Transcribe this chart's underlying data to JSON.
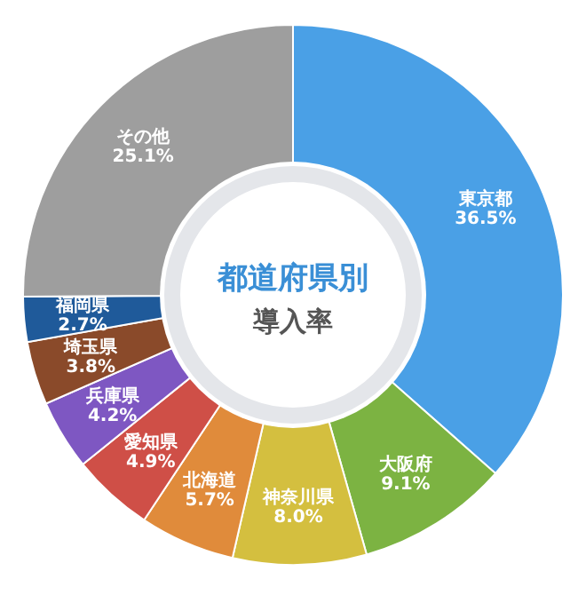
{
  "chart_data": {
    "type": "donut",
    "title": "都道府県別",
    "subtitle": "導入率",
    "categories": [
      "東京都",
      "大阪府",
      "神奈川県",
      "北海道",
      "愛知県",
      "兵庫県",
      "埼玉県",
      "福岡県",
      "その他"
    ],
    "values": [
      36.5,
      9.1,
      8.0,
      5.7,
      4.9,
      4.2,
      3.8,
      2.7,
      25.1
    ],
    "colors": [
      "#4aa0e6",
      "#7cb342",
      "#d4bf3f",
      "#e08b3b",
      "#cf4f47",
      "#7e57c2",
      "#8a4a2a",
      "#1f5a9a",
      "#9e9e9e"
    ],
    "value_labels": [
      "36.5%",
      "9.1%",
      "8.0%",
      "5.7%",
      "4.9%",
      "4.2%",
      "3.8%",
      "2.7%",
      "25.1%"
    ]
  }
}
